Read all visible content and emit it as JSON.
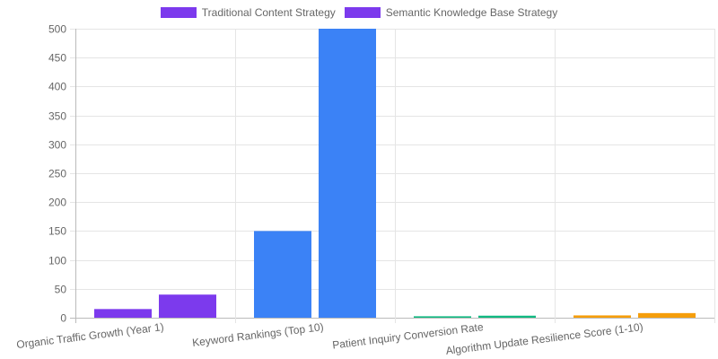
{
  "chart_data": {
    "type": "bar",
    "title": "",
    "xlabel": "",
    "ylabel": "",
    "ylim": [
      0,
      500
    ],
    "yticks": [
      0,
      50,
      100,
      150,
      200,
      250,
      300,
      350,
      400,
      450,
      500
    ],
    "grid": true,
    "legend_position": "top",
    "categories": [
      "Organic Traffic Growth (Year 1)",
      "Keyword Rankings (Top 10)",
      "Patient Inquiry Conversion Rate",
      "Algorithm Update Resilience Score (1-10)"
    ],
    "category_colors": [
      "#7c3aed",
      "#3b82f6",
      "#10b981",
      "#f59e0b"
    ],
    "series": [
      {
        "name": "Traditional Content Strategy",
        "values": [
          15,
          150,
          2.5,
          4
        ],
        "legend_color": "#7c3aed"
      },
      {
        "name": "Semantic Knowledge Base Strategy",
        "values": [
          40,
          500,
          3.5,
          8
        ],
        "legend_color": "#7c3aed"
      }
    ]
  },
  "legend": {
    "items": [
      {
        "label": "Traditional Content Strategy",
        "color": "#7c3aed"
      },
      {
        "label": "Semantic Knowledge Base Strategy",
        "color": "#7c3aed"
      }
    ]
  }
}
